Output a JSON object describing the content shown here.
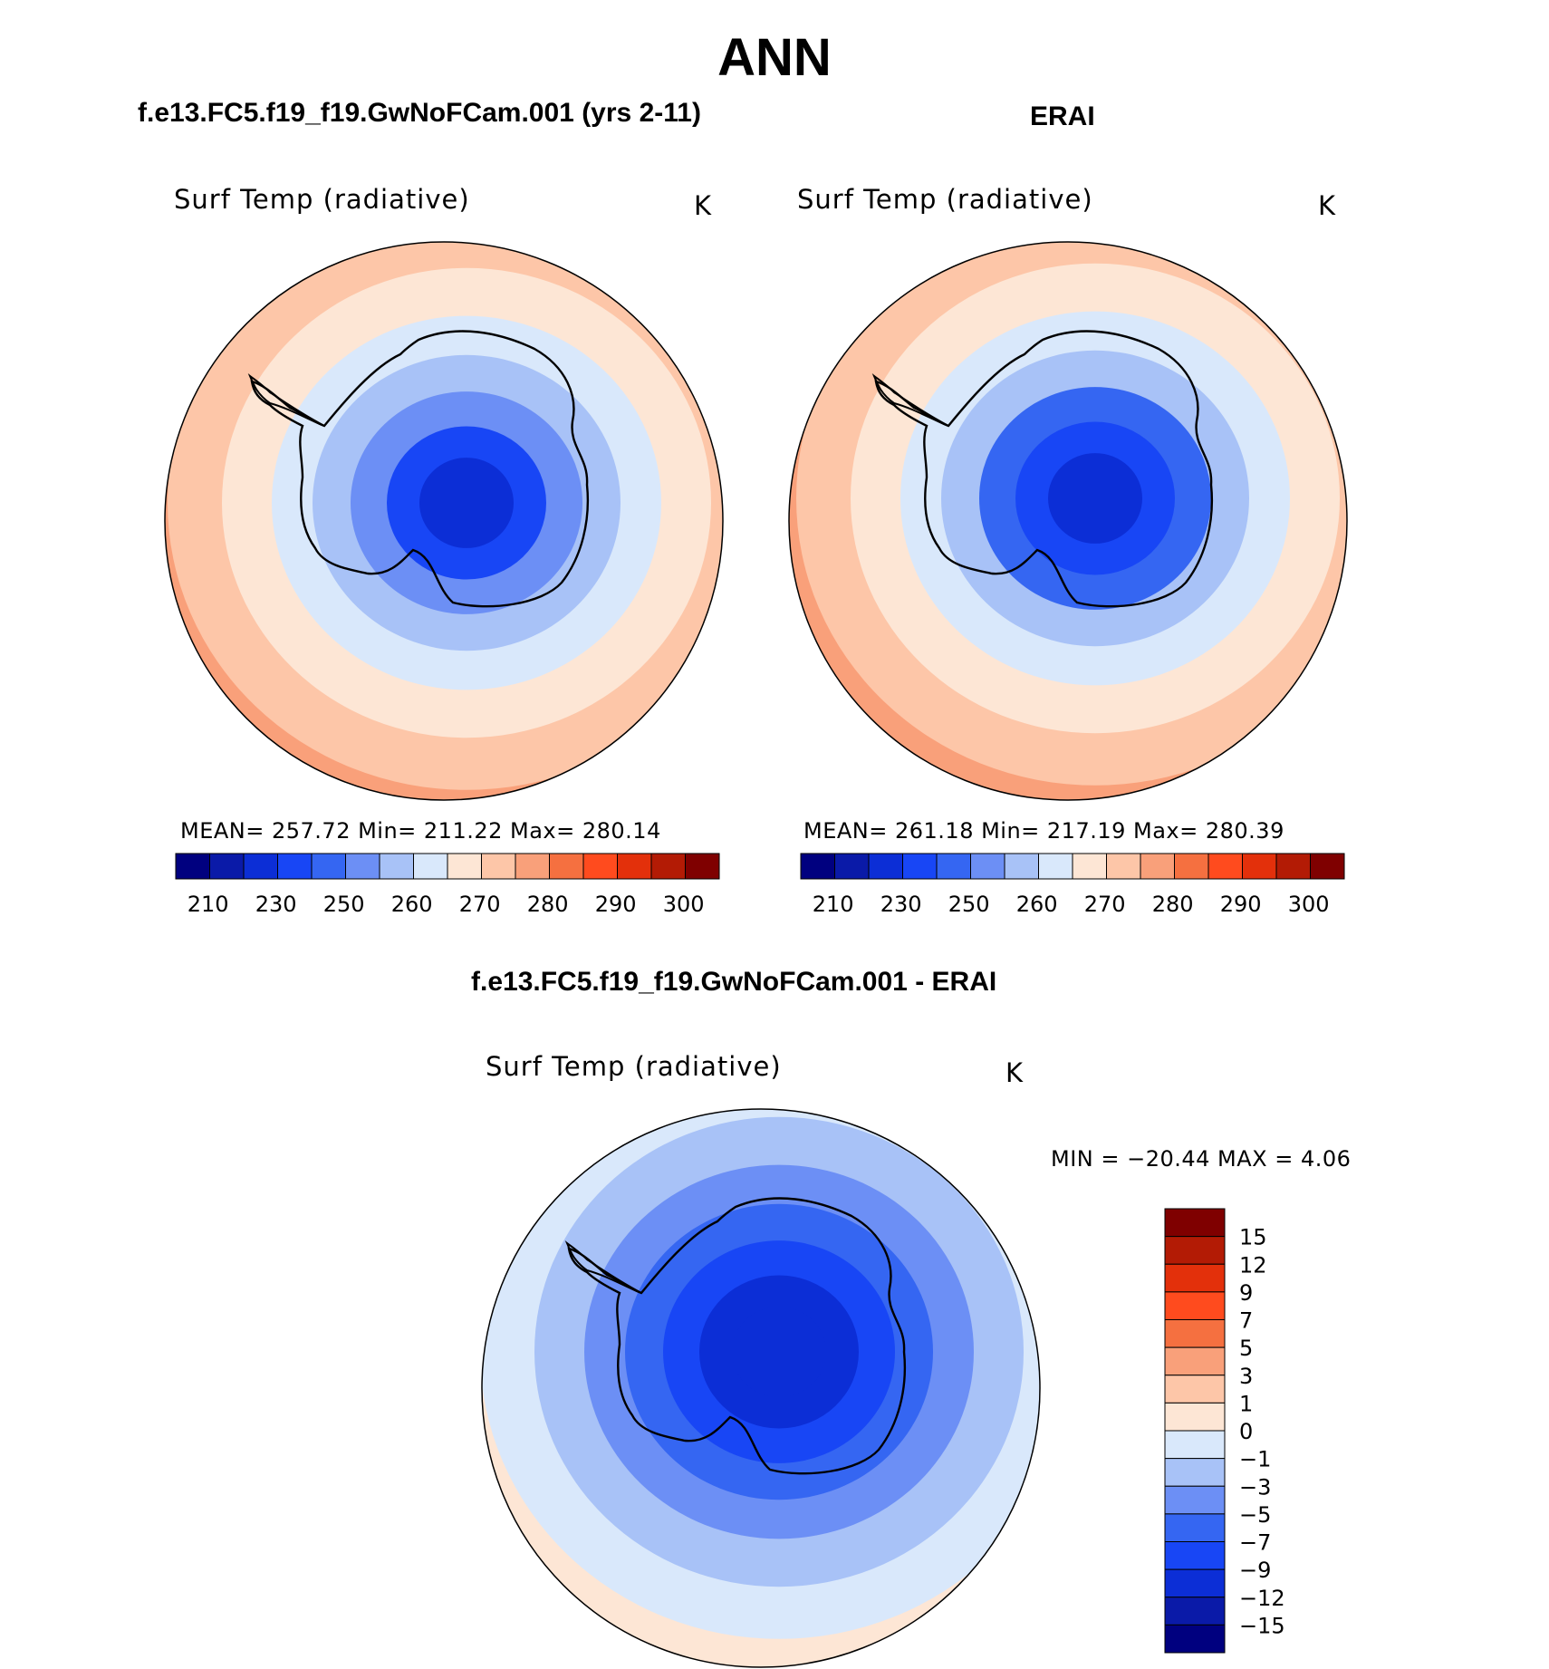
{
  "season": "ANN",
  "panels": {
    "model": {
      "title": "f.e13.FC5.f19_f19.GwNoFCam.001 (yrs 2-11)",
      "variable": "Surf Temp (radiative)",
      "units": "K",
      "stats": "MEAN= 257.72   Min= 211.22   Max= 280.14"
    },
    "obs": {
      "title": "ERAI",
      "variable": "Surf Temp (radiative)",
      "units": "K",
      "stats": "MEAN= 261.18   Min= 217.19   Max= 280.39"
    },
    "diff": {
      "title": "f.e13.FC5.f19_f19.GwNoFCam.001 - ERAI",
      "variable": "Surf Temp (radiative)",
      "units": "K",
      "stats": "MIN = −20.44  MAX =     4.06"
    }
  },
  "chart_data": [
    {
      "type": "heatmap",
      "projection": "south polar stereographic",
      "title": "f.e13.FC5.f19_f19.GwNoFCam.001 (yrs 2-11)",
      "variable": "Surf Temp (radiative)",
      "units": "K",
      "mean": 257.72,
      "min": 211.22,
      "max": 280.14,
      "colorbar_ticks": [
        "210",
        "230",
        "250",
        "260",
        "270",
        "280",
        "290",
        "300"
      ],
      "colorbar_levels": [
        200,
        210,
        220,
        230,
        240,
        250,
        255,
        260,
        265,
        270,
        275,
        280,
        285,
        290,
        295,
        300
      ],
      "colorbar_colors": [
        "#00007f",
        "#0a1aa8",
        "#0c2ed6",
        "#1846f5",
        "#3566f2",
        "#6c8ff5",
        "#a8c2f7",
        "#d9e8fb",
        "#fde6d5",
        "#fdc6a8",
        "#f9a07a",
        "#f57040",
        "#ff4b1e",
        "#e3300b",
        "#b31b05",
        "#7f0000"
      ]
    },
    {
      "type": "heatmap",
      "projection": "south polar stereographic",
      "title": "ERAI",
      "variable": "Surf Temp (radiative)",
      "units": "K",
      "mean": 261.18,
      "min": 217.19,
      "max": 280.39,
      "colorbar_ticks": [
        "210",
        "230",
        "250",
        "260",
        "270",
        "280",
        "290",
        "300"
      ],
      "colorbar_levels": [
        200,
        210,
        220,
        230,
        240,
        250,
        255,
        260,
        265,
        270,
        275,
        280,
        285,
        290,
        295,
        300
      ],
      "colorbar_colors": [
        "#00007f",
        "#0a1aa8",
        "#0c2ed6",
        "#1846f5",
        "#3566f2",
        "#6c8ff5",
        "#a8c2f7",
        "#d9e8fb",
        "#fde6d5",
        "#fdc6a8",
        "#f9a07a",
        "#f57040",
        "#ff4b1e",
        "#e3300b",
        "#b31b05",
        "#7f0000"
      ]
    },
    {
      "type": "heatmap",
      "projection": "south polar stereographic",
      "title": "f.e13.FC5.f19_f19.GwNoFCam.001 - ERAI",
      "variable": "Surf Temp (radiative)",
      "units": "K",
      "min": -20.44,
      "max": 4.06,
      "colorbar_ticks": [
        "15",
        "12",
        "9",
        "7",
        "5",
        "3",
        "1",
        "0",
        "−1",
        "−3",
        "−5",
        "−7",
        "−9",
        "−12",
        "−15"
      ],
      "colorbar_colors": [
        "#7f0000",
        "#b31b05",
        "#e3300b",
        "#ff4b1e",
        "#f57040",
        "#f9a07a",
        "#fdc6a8",
        "#fde6d5",
        "#d9e8fb",
        "#a8c2f7",
        "#6c8ff5",
        "#3566f2",
        "#1846f5",
        "#0c2ed6",
        "#0a1aa8",
        "#00007f"
      ]
    }
  ]
}
